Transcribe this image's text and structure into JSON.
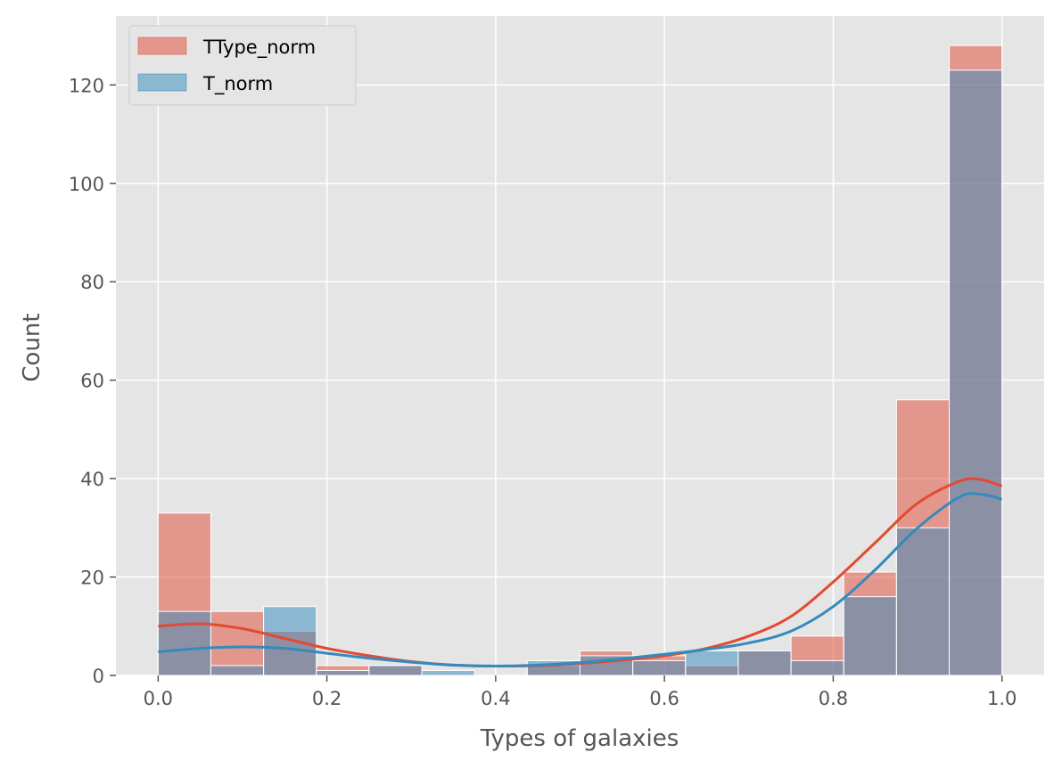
{
  "chart_data": {
    "type": "histogram",
    "xlabel": "Types of galaxies",
    "ylabel": "Count",
    "xlim": [
      -0.05,
      1.05
    ],
    "ylim": [
      0,
      134
    ],
    "grid": true,
    "legend_position": "top-left",
    "x_ticks": [
      0.0,
      0.2,
      0.4,
      0.6,
      0.8,
      1.0
    ],
    "x_tick_labels": [
      "0.0",
      "0.2",
      "0.4",
      "0.6",
      "0.8",
      "1.0"
    ],
    "y_ticks": [
      0,
      20,
      40,
      60,
      80,
      100,
      120
    ],
    "y_tick_labels": [
      "0",
      "20",
      "40",
      "60",
      "80",
      "100",
      "120"
    ],
    "bins": [
      0.0,
      0.0625,
      0.125,
      0.1875,
      0.25,
      0.3125,
      0.375,
      0.4375,
      0.5,
      0.5625,
      0.625,
      0.6875,
      0.75,
      0.8125,
      0.875,
      0.9375,
      1.0
    ],
    "series": [
      {
        "name": "TType_norm",
        "color": "#E24A33",
        "counts": [
          33,
          13,
          9,
          2,
          2,
          0,
          0,
          2,
          5,
          4,
          2,
          5,
          8,
          21,
          56,
          128
        ],
        "kde": [
          [
            0.0,
            10
          ],
          [
            0.05,
            10.5
          ],
          [
            0.1,
            9.5
          ],
          [
            0.15,
            7.5
          ],
          [
            0.2,
            5.5
          ],
          [
            0.25,
            4
          ],
          [
            0.3,
            2.8
          ],
          [
            0.35,
            2.1
          ],
          [
            0.4,
            1.9
          ],
          [
            0.45,
            2
          ],
          [
            0.5,
            2.4
          ],
          [
            0.55,
            3.1
          ],
          [
            0.6,
            4
          ],
          [
            0.65,
            5.5
          ],
          [
            0.7,
            8
          ],
          [
            0.75,
            12
          ],
          [
            0.8,
            19
          ],
          [
            0.85,
            27
          ],
          [
            0.9,
            35
          ],
          [
            0.95,
            39.5
          ],
          [
            0.975,
            39.8
          ],
          [
            1.0,
            38.5
          ]
        ]
      },
      {
        "name": "T_norm",
        "color": "#348ABD",
        "counts": [
          13,
          2,
          14,
          1,
          2,
          1,
          0,
          3,
          4,
          3,
          5,
          5,
          3,
          16,
          30,
          123
        ],
        "kde": [
          [
            0.0,
            4.8
          ],
          [
            0.05,
            5.5
          ],
          [
            0.1,
            5.8
          ],
          [
            0.15,
            5.5
          ],
          [
            0.2,
            4.5
          ],
          [
            0.25,
            3.5
          ],
          [
            0.3,
            2.7
          ],
          [
            0.35,
            2.1
          ],
          [
            0.4,
            1.9
          ],
          [
            0.45,
            2.1
          ],
          [
            0.5,
            2.6
          ],
          [
            0.55,
            3.4
          ],
          [
            0.6,
            4.3
          ],
          [
            0.65,
            5.3
          ],
          [
            0.7,
            6.6
          ],
          [
            0.75,
            9
          ],
          [
            0.8,
            14
          ],
          [
            0.85,
            21.5
          ],
          [
            0.9,
            30
          ],
          [
            0.95,
            36.3
          ],
          [
            0.975,
            36.8
          ],
          [
            1.0,
            35.8
          ]
        ]
      }
    ]
  }
}
